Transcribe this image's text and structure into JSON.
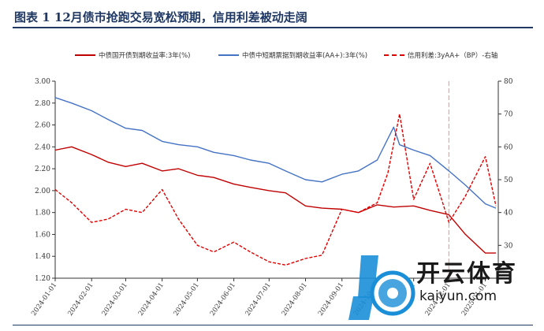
{
  "figure": {
    "title": "图表 1   12月债市抢跑交易宽松预期，信用利差被动走阔"
  },
  "legend": [
    {
      "label": "中债国开债到期收益率:3年(%)",
      "color": "#c00000",
      "style": "solid"
    },
    {
      "label": "中债中短期票据到期收益率(AA+):3年(%)",
      "color": "#4472c4",
      "style": "solid"
    },
    {
      "label": "信用利差:3yAA+（BP）-右轴",
      "color": "#e00000",
      "style": "dashed"
    }
  ],
  "watermark": {
    "name": "开云体育",
    "domain": "kaiyun.com"
  },
  "chart_data": {
    "type": "line",
    "left_axis": {
      "ylim": [
        1.2,
        3.0
      ],
      "ticks": [
        "1.20",
        "1.40",
        "1.60",
        "1.80",
        "2.00",
        "2.20",
        "2.40",
        "2.60",
        "2.80",
        "3.00"
      ]
    },
    "right_axis": {
      "ylim": [
        20,
        80
      ],
      "ticks": [
        "30",
        "40",
        "50",
        "60",
        "70",
        "80"
      ]
    },
    "x_labels": [
      "2024-01-01",
      "2024-02-01",
      "2024-03-01",
      "2024-04-01",
      "2024-05-01",
      "2024-06-01",
      "2024-07-01",
      "2024-08-01",
      "2024-09-01",
      "2024-10-01",
      "2024-11-01",
      "2024-12-01",
      "2025-01-01"
    ],
    "reference_line": {
      "x": "2024-12-01",
      "color": "#f4a0a0"
    },
    "series": [
      {
        "name": "中债国开债到期收益率:3年(%)",
        "axis": "left",
        "color": "#c00000",
        "style": "solid",
        "x": [
          "2024-01-01",
          "2024-01-15",
          "2024-02-01",
          "2024-02-15",
          "2024-03-01",
          "2024-03-15",
          "2024-04-01",
          "2024-04-15",
          "2024-05-01",
          "2024-05-15",
          "2024-06-01",
          "2024-06-15",
          "2024-07-01",
          "2024-07-15",
          "2024-08-01",
          "2024-08-15",
          "2024-09-01",
          "2024-09-15",
          "2024-10-01",
          "2024-10-15",
          "2024-11-01",
          "2024-11-15",
          "2024-12-01",
          "2024-12-15",
          "2025-01-01",
          "2025-01-10"
        ],
        "values": [
          2.37,
          2.4,
          2.33,
          2.26,
          2.22,
          2.25,
          2.18,
          2.2,
          2.14,
          2.12,
          2.06,
          2.03,
          2.0,
          1.98,
          1.86,
          1.84,
          1.83,
          1.8,
          1.87,
          1.85,
          1.86,
          1.82,
          1.78,
          1.6,
          1.43,
          1.43
        ]
      },
      {
        "name": "中债中短期票据到期收益率(AA+):3年(%)",
        "axis": "left",
        "color": "#4472c4",
        "style": "solid",
        "x": [
          "2024-01-01",
          "2024-01-15",
          "2024-02-01",
          "2024-02-15",
          "2024-03-01",
          "2024-03-15",
          "2024-04-01",
          "2024-04-15",
          "2024-05-01",
          "2024-05-15",
          "2024-06-01",
          "2024-06-15",
          "2024-07-01",
          "2024-07-15",
          "2024-08-01",
          "2024-08-15",
          "2024-09-01",
          "2024-09-15",
          "2024-10-01",
          "2024-10-15",
          "2024-10-20",
          "2024-11-01",
          "2024-11-15",
          "2024-12-01",
          "2024-12-15",
          "2025-01-01",
          "2025-01-10"
        ],
        "values": [
          2.85,
          2.8,
          2.73,
          2.65,
          2.57,
          2.55,
          2.45,
          2.42,
          2.4,
          2.35,
          2.32,
          2.28,
          2.25,
          2.18,
          2.1,
          2.08,
          2.15,
          2.18,
          2.28,
          2.58,
          2.42,
          2.37,
          2.32,
          2.18,
          2.05,
          1.88,
          1.84
        ]
      },
      {
        "name": "信用利差:3yAA+（BP）-右轴",
        "axis": "right",
        "color": "#e00000",
        "style": "dashed",
        "x": [
          "2024-01-01",
          "2024-01-15",
          "2024-02-01",
          "2024-02-15",
          "2024-03-01",
          "2024-03-15",
          "2024-04-01",
          "2024-04-15",
          "2024-05-01",
          "2024-05-15",
          "2024-06-01",
          "2024-06-15",
          "2024-07-01",
          "2024-07-15",
          "2024-08-01",
          "2024-08-15",
          "2024-09-01",
          "2024-09-15",
          "2024-10-01",
          "2024-10-10",
          "2024-10-20",
          "2024-11-01",
          "2024-11-15",
          "2024-12-01",
          "2024-12-15",
          "2025-01-01",
          "2025-01-10"
        ],
        "values": [
          47,
          43,
          37,
          38,
          41,
          40,
          47,
          38,
          30,
          28,
          31,
          28,
          25,
          24,
          26,
          27,
          41,
          40,
          43,
          52,
          70,
          44,
          55,
          37,
          45,
          57,
          42
        ]
      }
    ]
  }
}
